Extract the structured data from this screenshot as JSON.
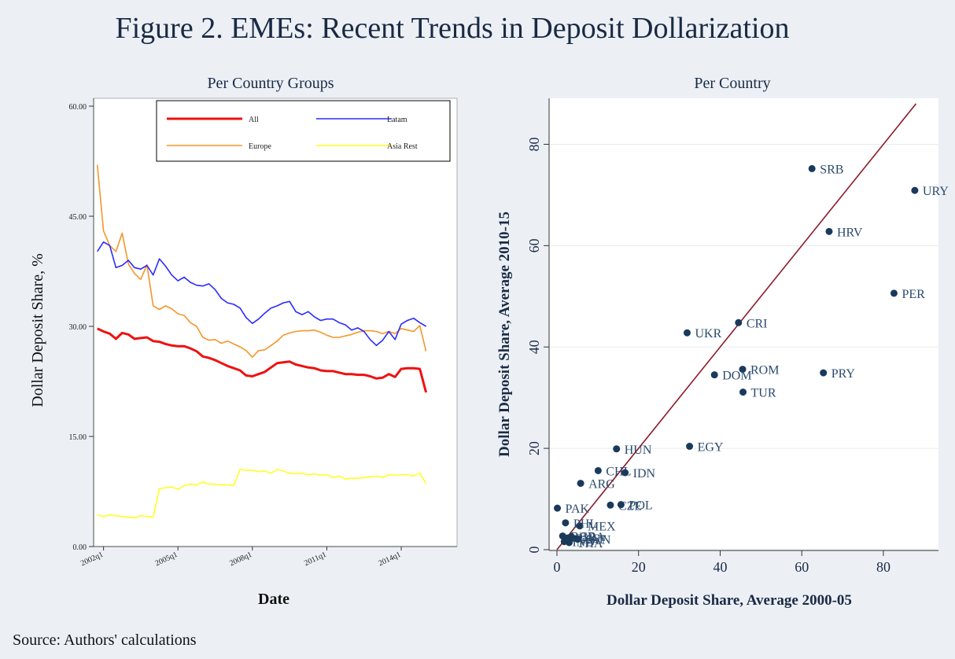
{
  "figure_title": "Figure 2. EMEs: Recent Trends in Deposit Dollarization",
  "source": "Source: Authors' calculations",
  "colors": {
    "All": "#ee1111",
    "Latam": "#2b2bff",
    "Europe": "#f5962a",
    "Asia Rest": "#ffff22",
    "scatter_point": "#1a3a5c",
    "fit_line": "#8b1a2b",
    "grid": "#e8ecf0"
  },
  "chart_data": [
    {
      "type": "line",
      "title": "Per Country Groups",
      "xlabel": "Date",
      "ylabel": "Dollar Deposit Share, %",
      "ylim": [
        0,
        60
      ],
      "yticks": [
        "0.00",
        "15.00",
        "30.00",
        "45.00",
        "60.00"
      ],
      "xlim": [
        2001.6,
        2016.25
      ],
      "xticks": [
        {
          "label": "2002q1",
          "x": 2002.0
        },
        {
          "label": "2005q1",
          "x": 2005.0
        },
        {
          "label": "2008q1",
          "x": 2008.0
        },
        {
          "label": "2011q1",
          "x": 2011.0
        },
        {
          "label": "2014q1",
          "x": 2014.0
        }
      ],
      "legend_position": "top-right",
      "x": [
        2001.75,
        2002.0,
        2002.25,
        2002.5,
        2002.75,
        2003.0,
        2003.25,
        2003.5,
        2003.75,
        2004.0,
        2004.25,
        2004.5,
        2004.75,
        2005.0,
        2005.25,
        2005.5,
        2005.75,
        2006.0,
        2006.25,
        2006.5,
        2006.75,
        2007.0,
        2007.25,
        2007.5,
        2007.75,
        2008.0,
        2008.25,
        2008.5,
        2008.75,
        2009.0,
        2009.25,
        2009.5,
        2009.75,
        2010.0,
        2010.25,
        2010.5,
        2010.75,
        2011.0,
        2011.25,
        2011.5,
        2011.75,
        2012.0,
        2012.25,
        2012.5,
        2012.75,
        2013.0,
        2013.25,
        2013.5,
        2013.75,
        2014.0,
        2014.25,
        2014.5,
        2014.75,
        2015.0
      ],
      "series": [
        {
          "name": "All",
          "values": [
            29.7,
            29.3,
            29.0,
            28.3,
            29.1,
            28.9,
            28.3,
            28.4,
            28.5,
            28.0,
            27.9,
            27.6,
            27.4,
            27.3,
            27.3,
            27.0,
            26.6,
            25.9,
            25.7,
            25.4,
            25.0,
            24.6,
            24.3,
            24.0,
            23.3,
            23.2,
            23.5,
            23.8,
            24.4,
            25.0,
            25.1,
            25.2,
            24.8,
            24.6,
            24.4,
            24.3,
            24.0,
            23.9,
            23.9,
            23.7,
            23.5,
            23.5,
            23.4,
            23.4,
            23.2,
            22.9,
            23.0,
            23.5,
            23.1,
            24.2,
            24.3,
            24.3,
            24.2,
            21.0
          ]
        },
        {
          "name": "Latam",
          "values": [
            40.2,
            41.5,
            41.0,
            38.0,
            38.3,
            39.0,
            38.0,
            37.8,
            38.3,
            37.0,
            39.2,
            38.2,
            37.0,
            36.2,
            36.7,
            36.0,
            35.6,
            35.5,
            35.8,
            35.0,
            33.8,
            33.2,
            33.0,
            32.5,
            31.2,
            30.4,
            31.0,
            31.8,
            32.5,
            32.8,
            33.2,
            33.4,
            32.0,
            31.6,
            32.0,
            31.3,
            30.8,
            31.0,
            31.0,
            30.5,
            30.2,
            29.5,
            29.8,
            29.3,
            28.2,
            27.4,
            28.1,
            29.3,
            28.2,
            30.3,
            30.8,
            31.1,
            30.5,
            30.0
          ]
        },
        {
          "name": "Europe",
          "values": [
            52.0,
            43.0,
            41.0,
            40.2,
            42.7,
            38.5,
            37.2,
            36.4,
            38.4,
            32.8,
            32.3,
            32.8,
            32.4,
            31.7,
            31.5,
            30.5,
            30.0,
            28.5,
            28.1,
            28.2,
            27.7,
            28.0,
            27.6,
            27.2,
            26.7,
            25.8,
            26.7,
            26.8,
            27.4,
            28.0,
            28.8,
            29.1,
            29.3,
            29.4,
            29.4,
            29.5,
            29.2,
            28.8,
            28.5,
            28.5,
            28.7,
            28.9,
            29.2,
            29.4,
            29.4,
            29.3,
            29.0,
            29.3,
            29.0,
            29.7,
            29.5,
            29.3,
            30.1,
            26.6
          ]
        },
        {
          "name": "Asia Rest",
          "values": [
            4.3,
            4.1,
            4.3,
            4.2,
            4.1,
            4.0,
            3.9,
            4.2,
            4.1,
            4.0,
            7.9,
            8.0,
            8.1,
            7.8,
            8.3,
            8.5,
            8.4,
            8.8,
            8.5,
            8.5,
            8.4,
            8.4,
            8.3,
            10.5,
            10.4,
            10.4,
            10.2,
            10.3,
            10.0,
            10.5,
            10.3,
            10.0,
            9.9,
            10.0,
            9.8,
            9.9,
            9.7,
            9.8,
            9.4,
            9.6,
            9.2,
            9.3,
            9.3,
            9.4,
            9.5,
            9.6,
            9.4,
            9.8,
            9.7,
            9.8,
            9.8,
            9.6,
            10.0,
            8.6
          ]
        }
      ]
    },
    {
      "type": "scatter",
      "title": "Per Country",
      "xlabel": "Dollar Deposit Share, Average 2000-05",
      "ylabel": "Dollar Deposit Share, Average 2010-15",
      "xlim": [
        -1,
        89
      ],
      "ylim": [
        -1,
        89
      ],
      "xticks": [
        0,
        20,
        40,
        60,
        80
      ],
      "yticks": [
        0,
        20,
        40,
        60,
        80
      ],
      "grid": true,
      "fit_line": {
        "x": [
          0,
          88
        ],
        "y": [
          0,
          88
        ]
      },
      "points": [
        {
          "label": "SRB",
          "x": 62.5,
          "y": 75.2
        },
        {
          "label": "URY",
          "x": 87.7,
          "y": 70.9
        },
        {
          "label": "HRV",
          "x": 66.7,
          "y": 62.8
        },
        {
          "label": "PER",
          "x": 82.6,
          "y": 50.6
        },
        {
          "label": "CRI",
          "x": 44.5,
          "y": 44.8
        },
        {
          "label": "UKR",
          "x": 31.9,
          "y": 42.8
        },
        {
          "label": "ROM",
          "x": 45.5,
          "y": 35.6
        },
        {
          "label": "PRY",
          "x": 65.3,
          "y": 34.9
        },
        {
          "label": "DOM",
          "x": 38.6,
          "y": 34.5
        },
        {
          "label": "TUR",
          "x": 45.6,
          "y": 31.1
        },
        {
          "label": "HUN",
          "x": 14.6,
          "y": 19.9
        },
        {
          "label": "EGY",
          "x": 32.5,
          "y": 20.4
        },
        {
          "label": "CHL",
          "x": 10.1,
          "y": 15.6
        },
        {
          "label": "IDN",
          "x": 16.7,
          "y": 15.2
        },
        {
          "label": "ARG",
          "x": 5.8,
          "y": 13.1
        },
        {
          "label": "CZE",
          "x": 13.1,
          "y": 8.8
        },
        {
          "label": "POL",
          "x": 15.7,
          "y": 8.9
        },
        {
          "label": "PAK",
          "x": 0.1,
          "y": 8.2
        },
        {
          "label": "MEX",
          "x": 5.6,
          "y": 4.7
        },
        {
          "label": "PHL",
          "x": 2.1,
          "y": 5.3
        },
        {
          "label": "BGR",
          "x": 1.4,
          "y": 2.7
        },
        {
          "label": "RUS",
          "x": 2.6,
          "y": 2.3
        },
        {
          "label": "BRA",
          "x": 3.5,
          "y": 2.6
        },
        {
          "label": "ZAF",
          "x": 4.3,
          "y": 2.2
        },
        {
          "label": "IND",
          "x": 1.8,
          "y": 1.6
        },
        {
          "label": "SVN",
          "x": 5.1,
          "y": 2.1
        },
        {
          "label": "THA",
          "x": 3.0,
          "y": 1.4
        }
      ]
    }
  ]
}
